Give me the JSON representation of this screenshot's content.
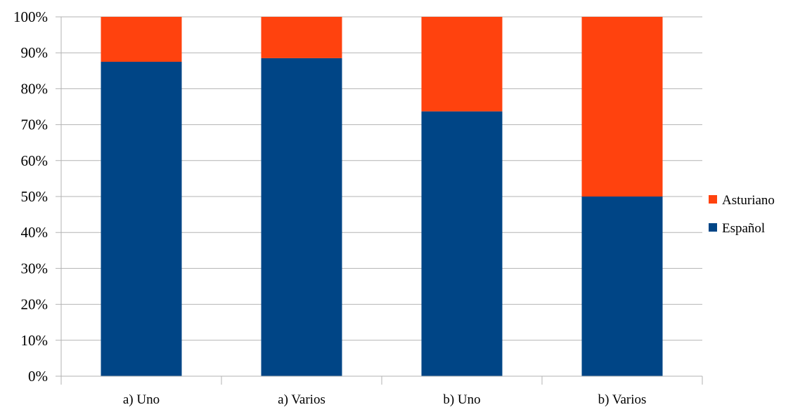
{
  "chart_data": {
    "type": "bar",
    "stacked": true,
    "percent_stacked": true,
    "categories": [
      "a) Uno",
      "a) Varios",
      "b) Uno",
      "b) Varios"
    ],
    "series": [
      {
        "name": "Español",
        "values": [
          87.5,
          88.5,
          73.7,
          50.0
        ],
        "color": "#004586"
      },
      {
        "name": "Asturiano",
        "values": [
          12.5,
          11.5,
          26.3,
          50.0
        ],
        "color": "#ff420e"
      }
    ],
    "ylim": [
      0,
      100
    ],
    "y_ticks": [
      "0%",
      "10%",
      "20%",
      "30%",
      "40%",
      "50%",
      "60%",
      "70%",
      "80%",
      "90%",
      "100%"
    ],
    "grid": true,
    "legend_position": "right",
    "legend_order": [
      "Asturiano",
      "Español"
    ]
  },
  "colors": {
    "grid": "#b3b3b3",
    "axis": "#b3b3b3"
  }
}
